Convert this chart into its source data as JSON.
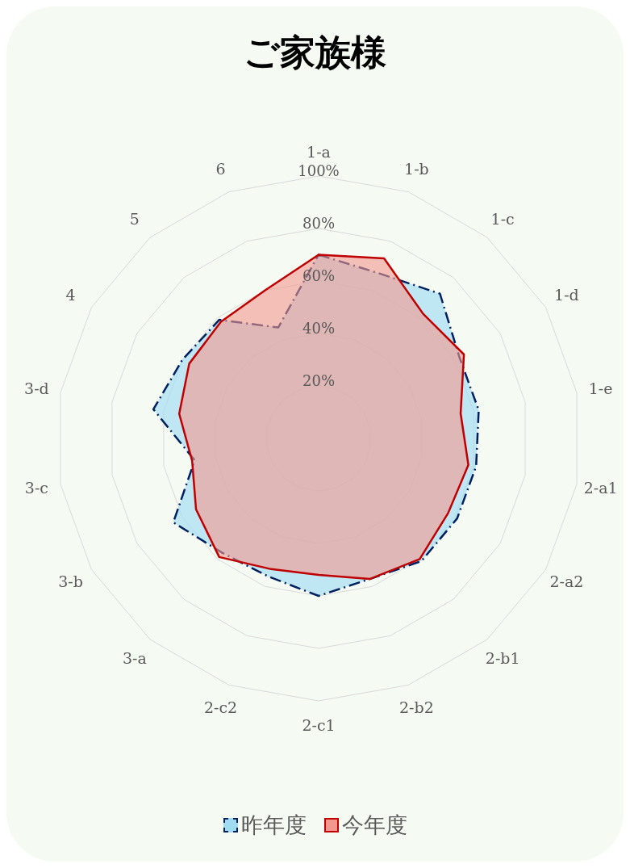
{
  "chart_data": {
    "type": "radar",
    "title": "ご家族様",
    "categories": [
      "1-a",
      "1-b",
      "1-c",
      "1-d",
      "1-e",
      "2-a1",
      "2-a2",
      "2-b1",
      "2-b2",
      "2-c1",
      "2-c2",
      "3-a",
      "3-b",
      "3-c",
      "3-d",
      "4",
      "5",
      "6"
    ],
    "series": [
      {
        "name": "昨年度",
        "color": "#002060",
        "line_style": "dashed",
        "values": [
          70,
          67,
          72,
          62,
          62,
          61,
          61,
          61,
          57,
          60,
          56,
          57,
          64,
          48,
          64,
          60,
          59,
          45
        ]
      },
      {
        "name": "今年度",
        "color": "#c00000",
        "line_style": "solid",
        "values": [
          70,
          73,
          62,
          64,
          55,
          58,
          57,
          60,
          57,
          52,
          53,
          59,
          54,
          49,
          54,
          57,
          58,
          60
        ]
      }
    ],
    "ylim": [
      0,
      100
    ],
    "yticks": [
      {
        "value": 20,
        "label": "20%"
      },
      {
        "value": 40,
        "label": "40%"
      },
      {
        "value": 60,
        "label": "60%"
      },
      {
        "value": 80,
        "label": "80%"
      },
      {
        "value": 100,
        "label": "100%"
      }
    ],
    "grid": true,
    "legend": "bottom"
  }
}
